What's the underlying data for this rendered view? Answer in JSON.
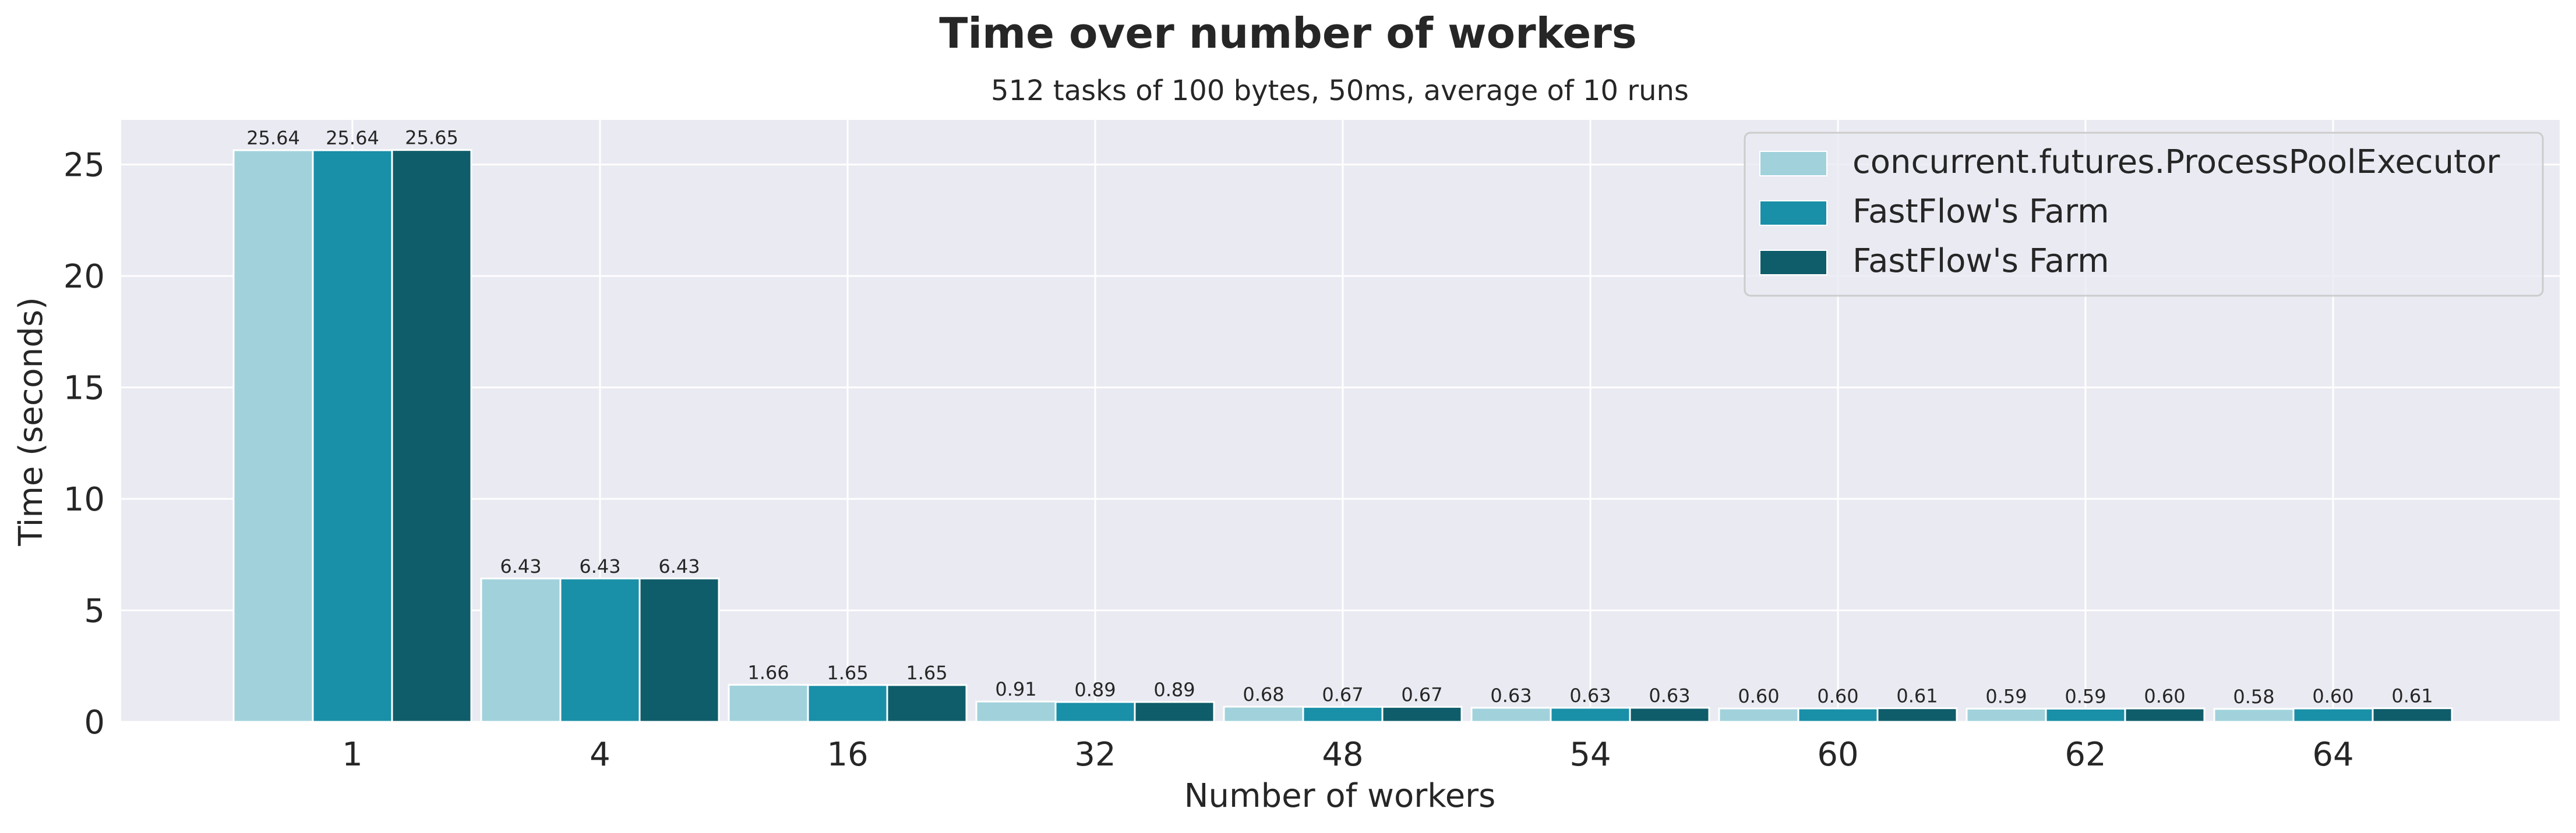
{
  "chart_data": {
    "type": "bar",
    "title": "Time over number of workers",
    "subtitle": "512 tasks of 100 bytes, 50ms, average of 10 runs",
    "xlabel": "Number of workers",
    "ylabel": "Time (seconds)",
    "categories": [
      "1",
      "4",
      "16",
      "32",
      "48",
      "54",
      "60",
      "62",
      "64"
    ],
    "ylim": [
      0,
      27
    ],
    "yticks": [
      0,
      5,
      10,
      15,
      20,
      25
    ],
    "grid": true,
    "legend_position": "top-right",
    "series": [
      {
        "name": "concurrent.futures.ProcessPoolExecutor",
        "color": "#a1d2dc",
        "values": [
          25.64,
          6.43,
          1.66,
          0.91,
          0.68,
          0.63,
          0.6,
          0.59,
          0.58
        ],
        "labels": [
          "25.64",
          "6.43",
          "1.66",
          "0.91",
          "0.68",
          "0.63",
          "0.60",
          "0.59",
          "0.58"
        ]
      },
      {
        "name": "FastFlow's Farm",
        "color": "#1a8fa8",
        "values": [
          25.64,
          6.43,
          1.65,
          0.89,
          0.67,
          0.63,
          0.6,
          0.59,
          0.6
        ],
        "labels": [
          "25.64",
          "6.43",
          "1.65",
          "0.89",
          "0.67",
          "0.63",
          "0.60",
          "0.59",
          "0.60"
        ]
      },
      {
        "name": "FastFlow's Farm",
        "color": "#0f5d6a",
        "values": [
          25.65,
          6.43,
          1.65,
          0.89,
          0.67,
          0.63,
          0.61,
          0.6,
          0.61
        ],
        "labels": [
          "25.65",
          "6.43",
          "1.65",
          "0.89",
          "0.67",
          "0.63",
          "0.61",
          "0.60",
          "0.61"
        ]
      }
    ],
    "colors": {
      "plot_background": "#eaeaf2",
      "grid": "#ffffff",
      "text": "#262626"
    }
  }
}
